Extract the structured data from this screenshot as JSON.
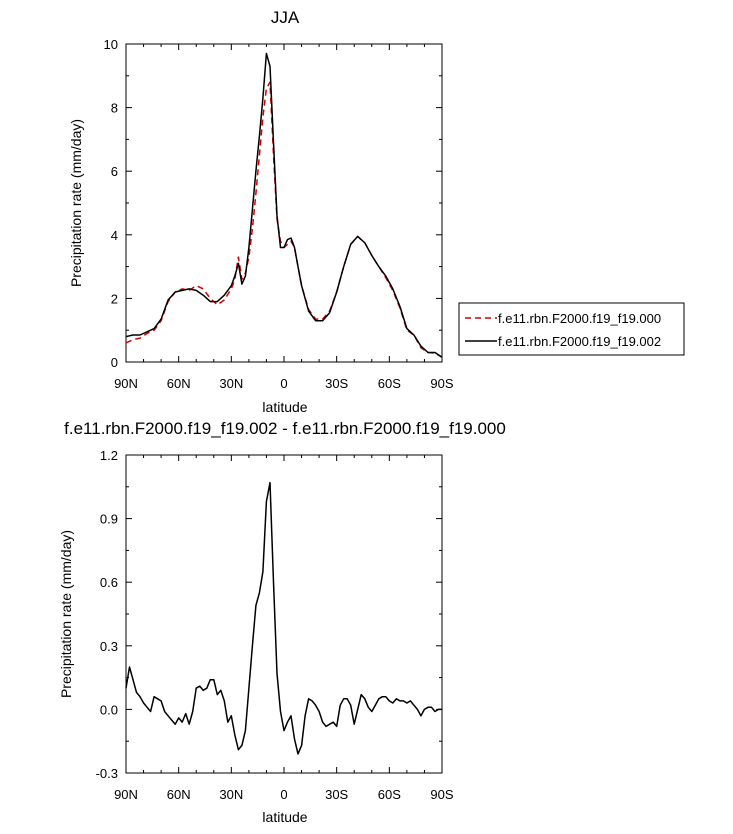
{
  "chart_data": [
    {
      "type": "line",
      "title": "JJA",
      "xlabel": "latitude",
      "ylabel": "Precipitation rate (mm/day)",
      "xlim": [
        90,
        -90
      ],
      "ylim": [
        0,
        10
      ],
      "x_ticks": [
        {
          "v": 90,
          "label": "90N"
        },
        {
          "v": 60,
          "label": "60N"
        },
        {
          "v": 30,
          "label": "30N"
        },
        {
          "v": 0,
          "label": "0"
        },
        {
          "v": -30,
          "label": "30S"
        },
        {
          "v": -60,
          "label": "60S"
        },
        {
          "v": -90,
          "label": "90S"
        }
      ],
      "y_ticks": [
        {
          "v": 0,
          "label": "0"
        },
        {
          "v": 2,
          "label": "2"
        },
        {
          "v": 4,
          "label": "4"
        },
        {
          "v": 6,
          "label": "6"
        },
        {
          "v": 8,
          "label": "8"
        },
        {
          "v": 10,
          "label": "10"
        }
      ],
      "legend": "right",
      "series": [
        {
          "name": "f.e11.rbn.F2000.f19_f19.000",
          "color": "#d40000",
          "dash": "dashed",
          "x": [
            90,
            86,
            82,
            78,
            74,
            70,
            66,
            62,
            58,
            54,
            50,
            46,
            42,
            38,
            34,
            30,
            28,
            26,
            24,
            22,
            20,
            18,
            16,
            14,
            12,
            10,
            8,
            6,
            4,
            2,
            0,
            -2,
            -4,
            -6,
            -8,
            -10,
            -14,
            -18,
            -22,
            -26,
            -30,
            -34,
            -38,
            -42,
            -46,
            -50,
            -54,
            -58,
            -62,
            -66,
            -70,
            -74,
            -78,
            -82,
            -86,
            -90
          ],
          "y": [
            0.6,
            0.7,
            0.75,
            0.9,
            1.0,
            1.3,
            1.9,
            2.2,
            2.3,
            2.25,
            2.4,
            2.3,
            2.0,
            1.8,
            1.95,
            2.3,
            2.6,
            3.3,
            2.6,
            2.8,
            3.3,
            4.2,
            5.3,
            6.5,
            7.7,
            8.6,
            8.8,
            6.5,
            4.5,
            3.8,
            3.6,
            3.7,
            3.8,
            3.6,
            3.0,
            2.4,
            1.65,
            1.35,
            1.35,
            1.6,
            2.2,
            3.0,
            3.7,
            3.95,
            3.75,
            3.35,
            3.0,
            2.65,
            2.25,
            1.7,
            1.0,
            0.85,
            0.45,
            0.3,
            0.28,
            0.15
          ]
        },
        {
          "name": "f.e11.rbn.F2000.f19_f19.002",
          "color": "#000000",
          "dash": "solid",
          "x": [
            90,
            86,
            82,
            78,
            74,
            70,
            66,
            62,
            58,
            54,
            50,
            46,
            42,
            38,
            34,
            30,
            28,
            26,
            24,
            22,
            20,
            18,
            16,
            14,
            12,
            10,
            8,
            6,
            4,
            2,
            0,
            -2,
            -4,
            -6,
            -8,
            -10,
            -14,
            -18,
            -22,
            -26,
            -30,
            -34,
            -38,
            -42,
            -46,
            -50,
            -54,
            -58,
            -62,
            -66,
            -70,
            -74,
            -78,
            -82,
            -86,
            -90
          ],
          "y": [
            0.8,
            0.85,
            0.85,
            0.95,
            1.05,
            1.35,
            1.95,
            2.2,
            2.25,
            2.3,
            2.25,
            2.1,
            1.9,
            1.9,
            2.1,
            2.4,
            2.7,
            3.1,
            2.45,
            2.7,
            3.6,
            4.8,
            6.0,
            7.1,
            8.3,
            9.7,
            9.3,
            6.9,
            4.6,
            3.6,
            3.6,
            3.85,
            3.9,
            3.6,
            3.0,
            2.4,
            1.6,
            1.3,
            1.3,
            1.55,
            2.2,
            3.0,
            3.7,
            3.95,
            3.75,
            3.35,
            3.0,
            2.7,
            2.3,
            1.75,
            1.05,
            0.85,
            0.5,
            0.3,
            0.3,
            0.15
          ]
        }
      ]
    },
    {
      "type": "line",
      "title": "f.e11.rbn.F2000.f19_f19.002 - f.e11.rbn.F2000.f19_f19.000",
      "xlabel": "latitude",
      "ylabel": "Precipitation rate (mm/day)",
      "xlim": [
        90,
        -90
      ],
      "ylim": [
        -0.3,
        1.2
      ],
      "x_ticks": [
        {
          "v": 90,
          "label": "90N"
        },
        {
          "v": 60,
          "label": "60N"
        },
        {
          "v": 30,
          "label": "30N"
        },
        {
          "v": 0,
          "label": "0"
        },
        {
          "v": -30,
          "label": "30S"
        },
        {
          "v": -60,
          "label": "60S"
        },
        {
          "v": -90,
          "label": "90S"
        }
      ],
      "y_ticks": [
        {
          "v": -0.3,
          "label": "-0.3"
        },
        {
          "v": 0,
          "label": "0.0"
        },
        {
          "v": 0.3,
          "label": "0.3"
        },
        {
          "v": 0.6,
          "label": "0.6"
        },
        {
          "v": 0.9,
          "label": "0.9"
        },
        {
          "v": 1.2,
          "label": "1.2"
        }
      ],
      "series": [
        {
          "color": "#000000",
          "dash": "solid",
          "x": [
            90,
            88,
            86,
            84,
            82,
            80,
            78,
            76,
            74,
            72,
            70,
            68,
            66,
            64,
            62,
            60,
            58,
            56,
            54,
            52,
            50,
            48,
            46,
            44,
            42,
            40,
            38,
            36,
            34,
            32,
            30,
            28,
            26,
            24,
            22,
            20,
            18,
            16,
            14,
            12,
            10,
            8,
            6,
            4,
            2,
            0,
            -2,
            -4,
            -6,
            -8,
            -10,
            -12,
            -14,
            -16,
            -18,
            -20,
            -22,
            -24,
            -26,
            -28,
            -30,
            -32,
            -34,
            -36,
            -38,
            -40,
            -42,
            -44,
            -46,
            -48,
            -50,
            -52,
            -54,
            -56,
            -58,
            -60,
            -62,
            -64,
            -66,
            -68,
            -70,
            -72,
            -74,
            -76,
            -78,
            -80,
            -82,
            -84,
            -86,
            -88,
            -90
          ],
          "y": [
            0.1,
            0.2,
            0.14,
            0.08,
            0.06,
            0.03,
            0.01,
            -0.01,
            0.06,
            0.05,
            0.04,
            -0.01,
            -0.03,
            -0.05,
            -0.07,
            -0.04,
            -0.06,
            -0.02,
            -0.07,
            -0.01,
            0.1,
            0.11,
            0.09,
            0.1,
            0.14,
            0.14,
            0.07,
            0.09,
            0.04,
            -0.06,
            -0.03,
            -0.12,
            -0.19,
            -0.17,
            -0.1,
            0.1,
            0.3,
            0.49,
            0.55,
            0.65,
            0.98,
            1.07,
            0.6,
            0.17,
            -0.01,
            -0.1,
            -0.06,
            -0.03,
            -0.14,
            -0.21,
            -0.17,
            -0.03,
            0.05,
            0.04,
            0.02,
            -0.01,
            -0.06,
            -0.08,
            -0.07,
            -0.06,
            -0.08,
            0.02,
            0.05,
            0.05,
            0.02,
            -0.07,
            0.0,
            0.07,
            0.05,
            0.01,
            -0.01,
            0.02,
            0.05,
            0.06,
            0.06,
            0.04,
            0.03,
            0.05,
            0.04,
            0.04,
            0.03,
            0.04,
            0.02,
            0.0,
            -0.03,
            0.0,
            0.01,
            0.01,
            -0.01,
            0.0,
            0.0
          ]
        }
      ]
    }
  ]
}
